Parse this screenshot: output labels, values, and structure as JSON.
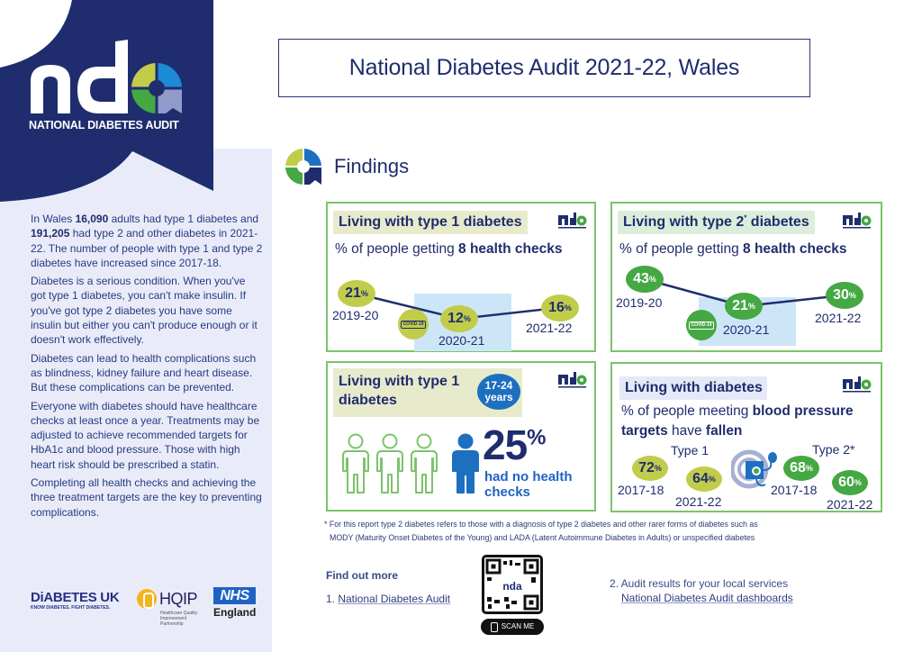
{
  "brand": {
    "logo_text": "nda",
    "logo_caption": "NATIONAL DIABETES AUDIT",
    "colors": {
      "navy": "#1f2d6e",
      "lime": "#c2cc4b",
      "green": "#44a843",
      "blue": "#1d6fc0",
      "lavender": "#8f9bc9",
      "panel": "#e9ecf8",
      "card_border": "#7cc36b"
    }
  },
  "title": "National Diabetes Audit 2021-22, Wales",
  "findings": {
    "heading": "Findings",
    "icon": "nda-ring-icon"
  },
  "sidebar": {
    "paragraphs": [
      {
        "parts": [
          {
            "t": "In Wales ",
            "b": false
          },
          {
            "t": "16,090",
            "b": true
          },
          {
            "t": " adults had type 1 diabetes and ",
            "b": false
          },
          {
            "t": "191,205",
            "b": true
          },
          {
            "t": " had type 2 and other diabetes in 2021-22. The number of people with type 1 and type 2 diabetes have increased since 2017-18.",
            "b": false
          }
        ]
      },
      {
        "parts": [
          {
            "t": "Diabetes is a serious condition. When you've got type 1 diabetes, you can't make insulin. If you've got type 2 diabetes you have some insulin but either you can't produce enough or it doesn't work effectively.",
            "b": false
          }
        ]
      },
      {
        "parts": [
          {
            "t": "Diabetes can lead to health complications such as blindness, kidney failure and heart disease. But these complications can be prevented.",
            "b": false
          }
        ]
      },
      {
        "parts": [
          {
            "t": "Everyone with diabetes should have healthcare checks at least once a year. Treatments may be adjusted to achieve recommended targets for HbA1c and blood pressure. Those with high heart risk should be prescribed a statin.",
            "b": false
          }
        ]
      },
      {
        "parts": [
          {
            "t": "Completing all health checks and achieving the three treatment targets are the key to preventing complications.",
            "b": false
          }
        ]
      }
    ],
    "partners": {
      "diabetes_uk": "DiABETES UK",
      "diabetes_uk_tagline": "KNOW DIABETES. FIGHT DIABETES.",
      "hqip": "HQIP",
      "hqip_tagline": "Healthcare Quality Improvement Partnership",
      "nhs": "NHS",
      "nhs_region": "England"
    }
  },
  "cards": {
    "type1_checks": {
      "tag": "Living with type 1 diabetes",
      "subtitle_plain": "% of people getting ",
      "subtitle_bold": "8 health checks",
      "covid_label": "COVID-19",
      "points": [
        {
          "year": "2019-20",
          "value": 21,
          "unit": "%"
        },
        {
          "year": "2020-21",
          "value": 12,
          "unit": "%"
        },
        {
          "year": "2021-22",
          "value": 16,
          "unit": "%"
        }
      ]
    },
    "type2_checks": {
      "tag": "Living with type 2",
      "tag_sup": "*",
      "tag_end": " diabetes",
      "subtitle_plain": "% of people getting ",
      "subtitle_bold": "8 health checks",
      "covid_label": "COVID-19",
      "points": [
        {
          "year": "2019-20",
          "value": 43,
          "unit": "%"
        },
        {
          "year": "2020-21",
          "value": 21,
          "unit": "%"
        },
        {
          "year": "2021-22",
          "value": 30,
          "unit": "%"
        }
      ]
    },
    "young_type1": {
      "tag_line1": "Living with type 1",
      "tag_line2": "diabetes",
      "age_line1": "17-24",
      "age_line2": "years",
      "value": 25,
      "unit": "%",
      "label_line1": "had no health",
      "label_line2": "checks",
      "people_total": 4,
      "people_highlighted": 1
    },
    "blood_pressure": {
      "tag": "Living with diabetes",
      "subtitle_1": "% of people meeting ",
      "subtitle_2_bold": "blood pressure",
      "subtitle_3_bold": "targets",
      "subtitle_4": " have ",
      "subtitle_5_bold": "fallen",
      "type1_label": "Type 1",
      "type2_label": "Type 2*",
      "type1": [
        {
          "year": "2017-18",
          "value": 72,
          "unit": "%"
        },
        {
          "year": "2021-22",
          "value": 64,
          "unit": "%"
        }
      ],
      "type2": [
        {
          "year": "2017-18",
          "value": 68,
          "unit": "%"
        },
        {
          "year": "2021-22",
          "value": 60,
          "unit": "%"
        }
      ]
    }
  },
  "footnote": {
    "line1": "* For this report type 2 diabetes refers to those with a diagnosis of type 2 diabetes and other rarer forms of diabetes such as",
    "line2": "MODY (Maturity Onset Diabetes of the Young) and LADA (Latent Autoimmune Diabetes in Adults) or unspecified diabetes"
  },
  "find_out_more": {
    "heading": "Find out more",
    "item1_prefix": "1. ",
    "item1_link": "National Diabetes Audit",
    "item2_text": "2. Audit results for your local services",
    "item2_link": "National Diabetes Audit dashboards",
    "qr_label": "SCAN ME",
    "qr_center": "nda"
  }
}
